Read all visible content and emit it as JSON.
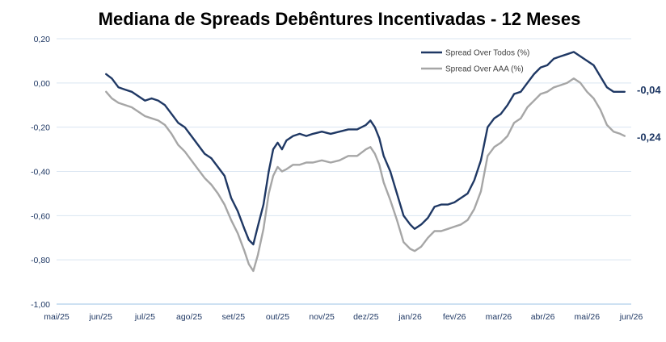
{
  "chart_data": {
    "type": "line",
    "title": "Mediana de Spreads Debêntures Incentivadas - 12 Meses",
    "xlabel": "",
    "ylabel": "",
    "ylim": [
      -1.0,
      0.2
    ],
    "yticks": [
      "0,20",
      "0,00",
      "-0,20",
      "-0,40",
      "-0,60",
      "-0,80",
      "-1,00"
    ],
    "xticks": [
      "mai/25",
      "jun/25",
      "jul/25",
      "ago/25",
      "set/25",
      "out/25",
      "nov/25",
      "dez/25",
      "jan/26",
      "fev/26",
      "mar/26",
      "abr/26",
      "mai/26",
      "jun/26"
    ],
    "grid": "horizontal",
    "legend_position": "top-right",
    "series": [
      {
        "name": "Spread Over Todos (%)",
        "color": "#1f3864",
        "end_label": "-0,04",
        "points": [
          [
            1.12,
            0.04
          ],
          [
            1.25,
            0.02
          ],
          [
            1.4,
            -0.02
          ],
          [
            1.55,
            -0.03
          ],
          [
            1.7,
            -0.04
          ],
          [
            1.85,
            -0.06
          ],
          [
            2.0,
            -0.08
          ],
          [
            2.15,
            -0.07
          ],
          [
            2.3,
            -0.08
          ],
          [
            2.45,
            -0.1
          ],
          [
            2.6,
            -0.14
          ],
          [
            2.75,
            -0.18
          ],
          [
            2.9,
            -0.2
          ],
          [
            3.05,
            -0.24
          ],
          [
            3.2,
            -0.28
          ],
          [
            3.35,
            -0.32
          ],
          [
            3.5,
            -0.34
          ],
          [
            3.65,
            -0.38
          ],
          [
            3.8,
            -0.42
          ],
          [
            3.95,
            -0.52
          ],
          [
            4.1,
            -0.58
          ],
          [
            4.25,
            -0.66
          ],
          [
            4.35,
            -0.71
          ],
          [
            4.45,
            -0.73
          ],
          [
            4.55,
            -0.65
          ],
          [
            4.68,
            -0.55
          ],
          [
            4.8,
            -0.4
          ],
          [
            4.9,
            -0.3
          ],
          [
            5.0,
            -0.27
          ],
          [
            5.1,
            -0.3
          ],
          [
            5.2,
            -0.26
          ],
          [
            5.35,
            -0.24
          ],
          [
            5.5,
            -0.23
          ],
          [
            5.65,
            -0.24
          ],
          [
            5.8,
            -0.23
          ],
          [
            6.0,
            -0.22
          ],
          [
            6.2,
            -0.23
          ],
          [
            6.4,
            -0.22
          ],
          [
            6.6,
            -0.21
          ],
          [
            6.8,
            -0.21
          ],
          [
            7.0,
            -0.19
          ],
          [
            7.1,
            -0.17
          ],
          [
            7.2,
            -0.2
          ],
          [
            7.3,
            -0.25
          ],
          [
            7.4,
            -0.33
          ],
          [
            7.55,
            -0.4
          ],
          [
            7.7,
            -0.5
          ],
          [
            7.85,
            -0.6
          ],
          [
            8.0,
            -0.64
          ],
          [
            8.1,
            -0.66
          ],
          [
            8.25,
            -0.64
          ],
          [
            8.4,
            -0.61
          ],
          [
            8.55,
            -0.56
          ],
          [
            8.7,
            -0.55
          ],
          [
            8.85,
            -0.55
          ],
          [
            9.0,
            -0.54
          ],
          [
            9.15,
            -0.52
          ],
          [
            9.3,
            -0.5
          ],
          [
            9.45,
            -0.44
          ],
          [
            9.6,
            -0.35
          ],
          [
            9.75,
            -0.2
          ],
          [
            9.9,
            -0.16
          ],
          [
            10.05,
            -0.14
          ],
          [
            10.2,
            -0.1
          ],
          [
            10.35,
            -0.05
          ],
          [
            10.5,
            -0.04
          ],
          [
            10.65,
            0.0
          ],
          [
            10.8,
            0.04
          ],
          [
            10.95,
            0.07
          ],
          [
            11.1,
            0.08
          ],
          [
            11.25,
            0.11
          ],
          [
            11.4,
            0.12
          ],
          [
            11.55,
            0.13
          ],
          [
            11.7,
            0.14
          ],
          [
            11.85,
            0.12
          ],
          [
            12.0,
            0.1
          ],
          [
            12.15,
            0.08
          ],
          [
            12.3,
            0.03
          ],
          [
            12.45,
            -0.02
          ],
          [
            12.6,
            -0.04
          ],
          [
            12.75,
            -0.04
          ],
          [
            12.85,
            -0.04
          ]
        ]
      },
      {
        "name": "Spread Over AAA (%)",
        "color": "#a6a6a6",
        "end_label": "-0,24",
        "points": [
          [
            1.12,
            -0.04
          ],
          [
            1.25,
            -0.07
          ],
          [
            1.4,
            -0.09
          ],
          [
            1.55,
            -0.1
          ],
          [
            1.7,
            -0.11
          ],
          [
            1.85,
            -0.13
          ],
          [
            2.0,
            -0.15
          ],
          [
            2.15,
            -0.16
          ],
          [
            2.3,
            -0.17
          ],
          [
            2.45,
            -0.19
          ],
          [
            2.6,
            -0.23
          ],
          [
            2.75,
            -0.28
          ],
          [
            2.9,
            -0.31
          ],
          [
            3.05,
            -0.35
          ],
          [
            3.2,
            -0.39
          ],
          [
            3.35,
            -0.43
          ],
          [
            3.5,
            -0.46
          ],
          [
            3.65,
            -0.5
          ],
          [
            3.8,
            -0.55
          ],
          [
            3.95,
            -0.62
          ],
          [
            4.1,
            -0.68
          ],
          [
            4.25,
            -0.76
          ],
          [
            4.35,
            -0.82
          ],
          [
            4.45,
            -0.85
          ],
          [
            4.55,
            -0.78
          ],
          [
            4.68,
            -0.66
          ],
          [
            4.8,
            -0.5
          ],
          [
            4.9,
            -0.42
          ],
          [
            5.0,
            -0.38
          ],
          [
            5.1,
            -0.4
          ],
          [
            5.2,
            -0.39
          ],
          [
            5.35,
            -0.37
          ],
          [
            5.5,
            -0.37
          ],
          [
            5.65,
            -0.36
          ],
          [
            5.8,
            -0.36
          ],
          [
            6.0,
            -0.35
          ],
          [
            6.2,
            -0.36
          ],
          [
            6.4,
            -0.35
          ],
          [
            6.6,
            -0.33
          ],
          [
            6.8,
            -0.33
          ],
          [
            7.0,
            -0.3
          ],
          [
            7.1,
            -0.29
          ],
          [
            7.2,
            -0.32
          ],
          [
            7.3,
            -0.37
          ],
          [
            7.4,
            -0.45
          ],
          [
            7.55,
            -0.53
          ],
          [
            7.7,
            -0.62
          ],
          [
            7.85,
            -0.72
          ],
          [
            8.0,
            -0.75
          ],
          [
            8.1,
            -0.76
          ],
          [
            8.25,
            -0.74
          ],
          [
            8.4,
            -0.7
          ],
          [
            8.55,
            -0.67
          ],
          [
            8.7,
            -0.67
          ],
          [
            8.85,
            -0.66
          ],
          [
            9.0,
            -0.65
          ],
          [
            9.15,
            -0.64
          ],
          [
            9.3,
            -0.62
          ],
          [
            9.45,
            -0.57
          ],
          [
            9.6,
            -0.49
          ],
          [
            9.75,
            -0.33
          ],
          [
            9.9,
            -0.29
          ],
          [
            10.05,
            -0.27
          ],
          [
            10.2,
            -0.24
          ],
          [
            10.35,
            -0.18
          ],
          [
            10.5,
            -0.16
          ],
          [
            10.65,
            -0.11
          ],
          [
            10.8,
            -0.08
          ],
          [
            10.95,
            -0.05
          ],
          [
            11.1,
            -0.04
          ],
          [
            11.25,
            -0.02
          ],
          [
            11.4,
            -0.01
          ],
          [
            11.55,
            0.0
          ],
          [
            11.7,
            0.02
          ],
          [
            11.85,
            0.0
          ],
          [
            12.0,
            -0.04
          ],
          [
            12.15,
            -0.07
          ],
          [
            12.3,
            -0.12
          ],
          [
            12.45,
            -0.19
          ],
          [
            12.6,
            -0.22
          ],
          [
            12.75,
            -0.23
          ],
          [
            12.85,
            -0.24
          ]
        ]
      }
    ]
  }
}
